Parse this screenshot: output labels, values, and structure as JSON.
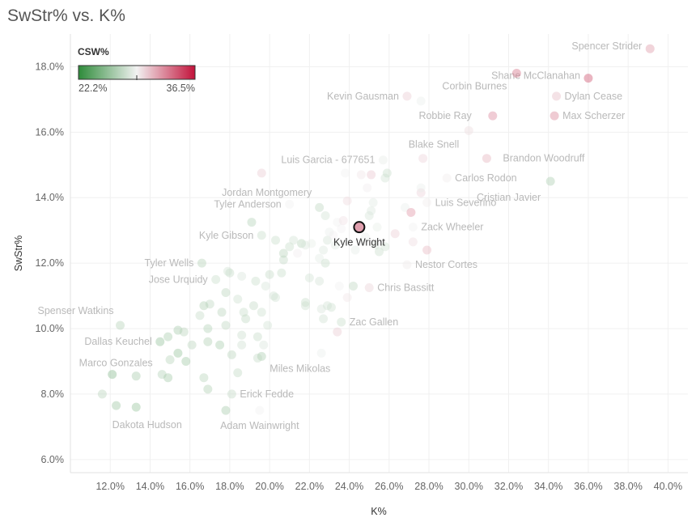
{
  "chart_data": {
    "type": "scatter",
    "title": "SwStr% vs. K%",
    "xlabel": "K%",
    "ylabel": "SwStr%",
    "xlim": [
      10.0,
      41.0
    ],
    "ylim": [
      5.6,
      19.0
    ],
    "x_ticks": [
      "12.0%",
      "14.0%",
      "16.0%",
      "18.0%",
      "20.0%",
      "22.0%",
      "24.0%",
      "26.0%",
      "28.0%",
      "30.0%",
      "32.0%",
      "34.0%",
      "36.0%",
      "38.0%",
      "40.0%"
    ],
    "y_ticks": [
      "6.0%",
      "8.0%",
      "10.0%",
      "12.0%",
      "14.0%",
      "16.0%",
      "18.0%"
    ],
    "legend": {
      "title": "CSW%",
      "min_label": "22.2%",
      "max_label": "36.5%",
      "placement": "top-left"
    },
    "colors": {
      "green": "#2e8b3a",
      "mid": "#f2f2f2",
      "red": "#c2123a",
      "outline": "#111111"
    },
    "highlight": {
      "name": "Kyle Wright",
      "x": 24.5,
      "y": 13.1,
      "csw": 32.0
    },
    "labeled_points": [
      {
        "name": "Spencer Strider",
        "x": 39.1,
        "y": 18.55,
        "csw": 32.0
      },
      {
        "name": "Shane McClanahan",
        "x": 36.0,
        "y": 17.65,
        "csw": 34.2
      },
      {
        "name": "Corbin Burnes",
        "x": 32.4,
        "y": 17.8,
        "csw": 33.2
      },
      {
        "name": "Kevin Gausman",
        "x": 26.9,
        "y": 17.1,
        "csw": 30.5
      },
      {
        "name": "Dylan Cease",
        "x": 34.4,
        "y": 17.1,
        "csw": 31.0
      },
      {
        "name": "Robbie Ray",
        "x": 31.2,
        "y": 16.5,
        "csw": 32.5
      },
      {
        "name": "Max Scherzer",
        "x": 34.3,
        "y": 16.5,
        "csw": 32.6
      },
      {
        "name": "Blake Snell",
        "x": 30.0,
        "y": 16.05,
        "csw": 30.0
      },
      {
        "name": "Brandon Woodruff",
        "x": 30.9,
        "y": 15.2,
        "csw": 31.2
      },
      {
        "name": "Luis Garcia - 677651",
        "x": 25.7,
        "y": 15.15,
        "csw": 29.0
      },
      {
        "name": "Carlos Rodon",
        "x": 28.9,
        "y": 14.6,
        "csw": 29.5
      },
      {
        "name": "Cristian Javier",
        "x": 34.1,
        "y": 14.5,
        "csw": 27.0
      },
      {
        "name": "Jordan Montgomery",
        "x": 19.6,
        "y": 14.75,
        "csw": 30.5
      },
      {
        "name": "Tyler Anderson",
        "x": 21.0,
        "y": 13.8,
        "csw": 29.3
      },
      {
        "name": "Luis Severino",
        "x": 27.9,
        "y": 13.85,
        "csw": 29.5
      },
      {
        "name": "Kyle Gibson",
        "x": 19.6,
        "y": 12.85,
        "csw": 28.0
      },
      {
        "name": "Zack Wheeler",
        "x": 27.2,
        "y": 13.1,
        "csw": 29.3
      },
      {
        "name": "Tyler Wells",
        "x": 16.6,
        "y": 12.0,
        "csw": 27.3
      },
      {
        "name": "Nestor Cortes",
        "x": 26.9,
        "y": 11.95,
        "csw": 29.6
      },
      {
        "name": "Jose Urquidy",
        "x": 17.3,
        "y": 11.5,
        "csw": 28.0
      },
      {
        "name": "Chris Bassitt",
        "x": 25.0,
        "y": 11.25,
        "csw": 30.3
      },
      {
        "name": "Spenser Watkins",
        "x": 12.5,
        "y": 10.1,
        "csw": 27.3
      },
      {
        "name": "Zac Gallen",
        "x": 23.6,
        "y": 10.2,
        "csw": 28.0
      },
      {
        "name": "Dallas Keuchel",
        "x": 14.5,
        "y": 9.6,
        "csw": 26.2
      },
      {
        "name": "Marco Gonzales",
        "x": 12.1,
        "y": 8.6,
        "csw": 25.8
      },
      {
        "name": "Miles Mikolas",
        "x": 19.6,
        "y": 9.15,
        "csw": 27.0
      },
      {
        "name": "Erick Fedde",
        "x": 18.1,
        "y": 8.0,
        "csw": 27.8
      },
      {
        "name": "Dakota Hudson",
        "x": 12.3,
        "y": 7.65,
        "csw": 26.5
      },
      {
        "name": "Adam Wainwright",
        "x": 19.5,
        "y": 7.5,
        "csw": 29.3
      }
    ],
    "points": [
      {
        "x": 11.6,
        "y": 8.0,
        "csw": 27.0
      },
      {
        "x": 13.3,
        "y": 7.6,
        "csw": 25.6
      },
      {
        "x": 13.3,
        "y": 8.55,
        "csw": 26.3
      },
      {
        "x": 14.6,
        "y": 8.6,
        "csw": 26.8
      },
      {
        "x": 14.9,
        "y": 8.5,
        "csw": 26.2
      },
      {
        "x": 15.0,
        "y": 9.05,
        "csw": 26.9
      },
      {
        "x": 15.4,
        "y": 9.25,
        "csw": 25.6
      },
      {
        "x": 15.8,
        "y": 9.0,
        "csw": 26.0
      },
      {
        "x": 16.1,
        "y": 9.5,
        "csw": 27.0
      },
      {
        "x": 14.9,
        "y": 9.75,
        "csw": 26.4
      },
      {
        "x": 15.4,
        "y": 9.95,
        "csw": 26.3
      },
      {
        "x": 15.7,
        "y": 9.9,
        "csw": 27.0
      },
      {
        "x": 16.5,
        "y": 10.4,
        "csw": 27.5
      },
      {
        "x": 16.9,
        "y": 10.0,
        "csw": 26.8
      },
      {
        "x": 17.0,
        "y": 10.75,
        "csw": 27.2
      },
      {
        "x": 16.7,
        "y": 10.7,
        "csw": 26.6
      },
      {
        "x": 16.9,
        "y": 9.6,
        "csw": 26.6
      },
      {
        "x": 17.5,
        "y": 9.5,
        "csw": 26.4
      },
      {
        "x": 16.7,
        "y": 8.5,
        "csw": 26.9
      },
      {
        "x": 16.9,
        "y": 8.15,
        "csw": 26.6
      },
      {
        "x": 17.8,
        "y": 7.5,
        "csw": 26.3
      },
      {
        "x": 18.1,
        "y": 9.2,
        "csw": 27.0
      },
      {
        "x": 18.4,
        "y": 8.65,
        "csw": 27.3
      },
      {
        "x": 17.6,
        "y": 10.5,
        "csw": 27.0
      },
      {
        "x": 17.8,
        "y": 10.1,
        "csw": 27.2
      },
      {
        "x": 18.4,
        "y": 10.9,
        "csw": 27.8
      },
      {
        "x": 17.8,
        "y": 11.1,
        "csw": 27.0
      },
      {
        "x": 18.0,
        "y": 11.7,
        "csw": 27.5
      },
      {
        "x": 17.9,
        "y": 11.75,
        "csw": 28.0
      },
      {
        "x": 18.6,
        "y": 11.6,
        "csw": 28.3
      },
      {
        "x": 18.7,
        "y": 10.5,
        "csw": 27.6
      },
      {
        "x": 18.8,
        "y": 10.3,
        "csw": 27.3
      },
      {
        "x": 18.6,
        "y": 9.8,
        "csw": 27.7
      },
      {
        "x": 18.6,
        "y": 9.5,
        "csw": 27.9
      },
      {
        "x": 19.2,
        "y": 10.7,
        "csw": 27.4
      },
      {
        "x": 19.4,
        "y": 9.75,
        "csw": 27.5
      },
      {
        "x": 19.4,
        "y": 9.1,
        "csw": 27.5
      },
      {
        "x": 19.7,
        "y": 9.5,
        "csw": 28.3
      },
      {
        "x": 19.6,
        "y": 10.5,
        "csw": 27.8
      },
      {
        "x": 19.9,
        "y": 10.1,
        "csw": 28.0
      },
      {
        "x": 19.3,
        "y": 11.45,
        "csw": 27.6
      },
      {
        "x": 19.8,
        "y": 11.3,
        "csw": 28.2
      },
      {
        "x": 20.2,
        "y": 11.0,
        "csw": 27.9
      },
      {
        "x": 20.0,
        "y": 11.65,
        "csw": 27.5
      },
      {
        "x": 20.3,
        "y": 10.95,
        "csw": 28.0
      },
      {
        "x": 20.6,
        "y": 11.7,
        "csw": 27.6
      },
      {
        "x": 20.7,
        "y": 12.1,
        "csw": 27.4
      },
      {
        "x": 20.3,
        "y": 12.7,
        "csw": 27.6
      },
      {
        "x": 19.1,
        "y": 13.25,
        "csw": 26.8
      },
      {
        "x": 20.7,
        "y": 12.3,
        "csw": 27.0
      },
      {
        "x": 21.0,
        "y": 12.5,
        "csw": 27.6
      },
      {
        "x": 21.2,
        "y": 12.7,
        "csw": 28.0
      },
      {
        "x": 21.4,
        "y": 12.3,
        "csw": 29.6
      },
      {
        "x": 21.6,
        "y": 12.6,
        "csw": 26.9
      },
      {
        "x": 21.8,
        "y": 12.55,
        "csw": 28.4
      },
      {
        "x": 22.1,
        "y": 12.6,
        "csw": 28.9
      },
      {
        "x": 22.0,
        "y": 11.55,
        "csw": 28.0
      },
      {
        "x": 21.8,
        "y": 10.8,
        "csw": 27.6
      },
      {
        "x": 21.8,
        "y": 10.7,
        "csw": 27.8
      },
      {
        "x": 22.5,
        "y": 11.45,
        "csw": 28.1
      },
      {
        "x": 22.6,
        "y": 10.6,
        "csw": 28.3
      },
      {
        "x": 22.7,
        "y": 10.3,
        "csw": 27.9
      },
      {
        "x": 22.9,
        "y": 10.7,
        "csw": 28.0
      },
      {
        "x": 23.1,
        "y": 10.65,
        "csw": 27.8
      },
      {
        "x": 22.6,
        "y": 9.25,
        "csw": 29.0
      },
      {
        "x": 23.4,
        "y": 9.9,
        "csw": 30.8
      },
      {
        "x": 22.5,
        "y": 12.15,
        "csw": 28.7
      },
      {
        "x": 22.7,
        "y": 12.4,
        "csw": 28.4
      },
      {
        "x": 22.8,
        "y": 12.0,
        "csw": 27.6
      },
      {
        "x": 22.9,
        "y": 12.7,
        "csw": 28.1
      },
      {
        "x": 22.5,
        "y": 13.7,
        "csw": 27.2
      },
      {
        "x": 22.8,
        "y": 13.45,
        "csw": 28.0
      },
      {
        "x": 23.0,
        "y": 12.95,
        "csw": 29.0
      },
      {
        "x": 23.4,
        "y": 13.25,
        "csw": 29.2
      },
      {
        "x": 23.2,
        "y": 12.85,
        "csw": 29.5
      },
      {
        "x": 23.6,
        "y": 13.05,
        "csw": 29.4
      },
      {
        "x": 23.7,
        "y": 13.3,
        "csw": 30.0
      },
      {
        "x": 23.9,
        "y": 13.9,
        "csw": 30.3
      },
      {
        "x": 23.3,
        "y": 12.55,
        "csw": 28.6
      },
      {
        "x": 23.5,
        "y": 11.3,
        "csw": 29.2
      },
      {
        "x": 23.9,
        "y": 10.95,
        "csw": 29.9
      },
      {
        "x": 24.2,
        "y": 11.3,
        "csw": 27.2
      },
      {
        "x": 24.3,
        "y": 12.4,
        "csw": 28.8
      },
      {
        "x": 24.8,
        "y": 12.8,
        "csw": 29.0
      },
      {
        "x": 25.0,
        "y": 13.45,
        "csw": 28.2
      },
      {
        "x": 25.1,
        "y": 13.6,
        "csw": 28.4
      },
      {
        "x": 25.2,
        "y": 13.85,
        "csw": 28.6
      },
      {
        "x": 24.9,
        "y": 14.3,
        "csw": 29.6
      },
      {
        "x": 25.1,
        "y": 14.7,
        "csw": 30.9
      },
      {
        "x": 24.6,
        "y": 14.7,
        "csw": 29.9
      },
      {
        "x": 23.8,
        "y": 14.75,
        "csw": 29.2
      },
      {
        "x": 25.4,
        "y": 13.1,
        "csw": 28.9
      },
      {
        "x": 25.3,
        "y": 12.55,
        "csw": 28.3
      },
      {
        "x": 25.5,
        "y": 12.35,
        "csw": 27.7
      },
      {
        "x": 25.8,
        "y": 12.5,
        "csw": 28.0
      },
      {
        "x": 25.8,
        "y": 14.6,
        "csw": 28.0
      },
      {
        "x": 25.9,
        "y": 14.75,
        "csw": 27.6
      },
      {
        "x": 26.3,
        "y": 12.9,
        "csw": 30.7
      },
      {
        "x": 26.8,
        "y": 13.7,
        "csw": 29.0
      },
      {
        "x": 27.1,
        "y": 13.55,
        "csw": 32.7
      },
      {
        "x": 27.2,
        "y": 12.65,
        "csw": 30.2
      },
      {
        "x": 27.6,
        "y": 14.15,
        "csw": 30.5
      },
      {
        "x": 27.6,
        "y": 14.3,
        "csw": 29.0
      },
      {
        "x": 27.7,
        "y": 15.2,
        "csw": 30.5
      },
      {
        "x": 27.9,
        "y": 12.4,
        "csw": 31.5
      },
      {
        "x": 27.6,
        "y": 16.95,
        "csw": 29.0
      }
    ]
  }
}
